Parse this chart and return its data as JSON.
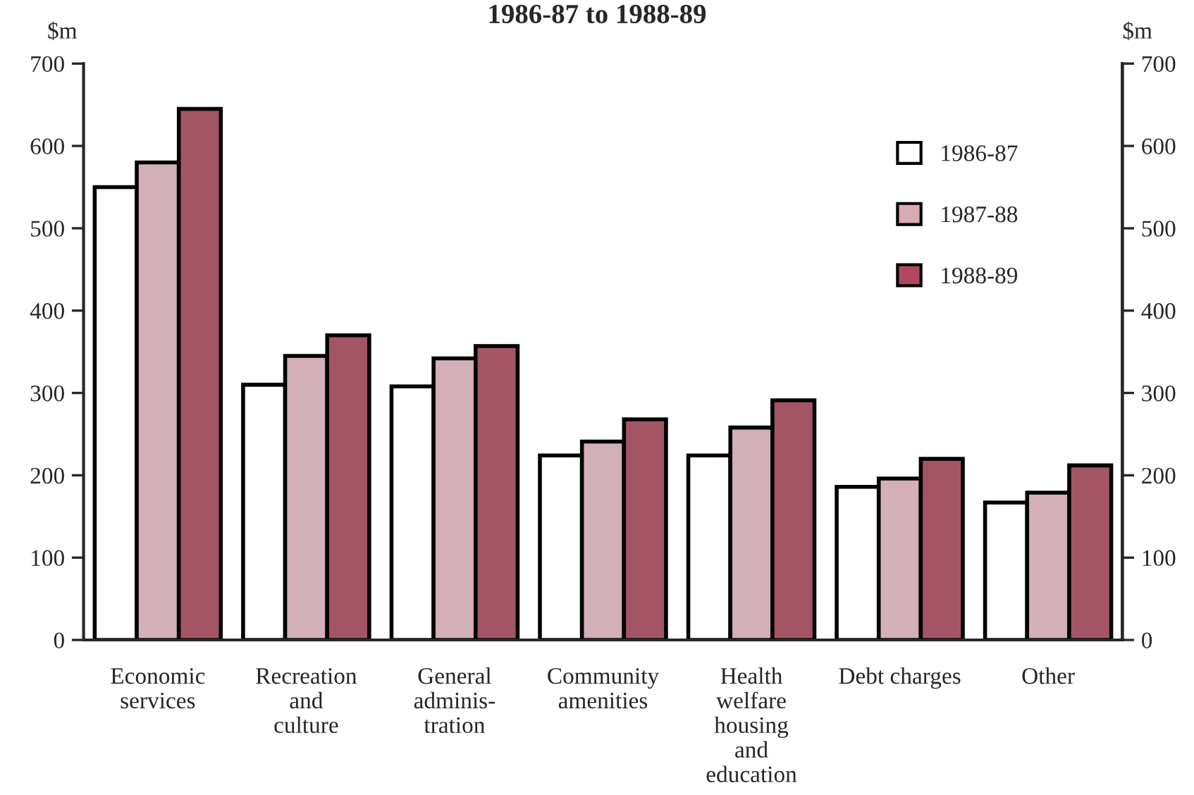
{
  "chart_data": {
    "type": "bar",
    "subtitle": "1986-87 to 1988-89",
    "ylabel": "$m",
    "y2label": "$m",
    "categories": [
      "Economic\nservices",
      "Recreation\nand\nculture",
      "General\nadminis-\ntration",
      "Community\namenities",
      "Health\nwelfare\nhousing\nand\neducation",
      "Debt charges",
      "Other"
    ],
    "series": [
      {
        "name": "1986-87",
        "color": "#ffffff",
        "values": [
          550,
          310,
          308,
          224,
          224,
          186,
          167
        ]
      },
      {
        "name": "1987-88",
        "color": "#d9a9b4",
        "values": [
          580,
          345,
          342,
          241,
          258,
          196,
          179
        ]
      },
      {
        "name": "1988-89",
        "color": "#b0485e",
        "values": [
          645,
          370,
          357,
          268,
          291,
          220,
          212
        ]
      }
    ],
    "ylim": [
      0,
      700
    ],
    "yticks": [
      0,
      100,
      200,
      300,
      400,
      500,
      600,
      700
    ],
    "y2lim": [
      0,
      700
    ],
    "y2ticks": [
      0,
      100,
      200,
      300,
      400,
      500,
      600,
      700
    ],
    "legend": "top right",
    "grid": false
  }
}
